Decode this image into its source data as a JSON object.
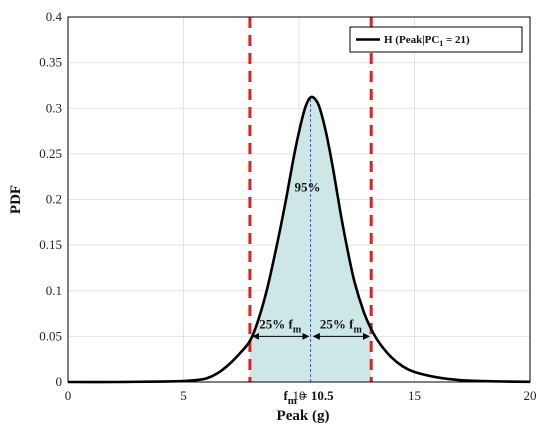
{
  "chart_data": {
    "type": "line",
    "xlabel": "Peak (g)",
    "ylabel": "PDF",
    "xlim": [
      0,
      20
    ],
    "ylim": [
      0,
      0.4
    ],
    "xticks": [
      0,
      5,
      10,
      15,
      20
    ],
    "yticks": [
      "0",
      "0.05",
      "0.1",
      "0.15",
      "0.2",
      "0.25",
      "0.3",
      "0.35",
      "0.4"
    ],
    "grid": true,
    "series": [
      {
        "name": "H (Peak|PC",
        "name_sub": "1",
        "name_tail": " = 21)",
        "color": "#000000",
        "x": [
          0,
          2,
          4,
          5,
          5.5,
          6,
          6.5,
          7,
          7.5,
          7.875,
          8.2,
          8.6,
          9.0,
          9.4,
          9.8,
          10.1,
          10.3,
          10.5,
          10.7,
          10.9,
          11.2,
          11.5,
          11.8,
          12.1,
          12.4,
          12.8,
          13.125,
          13.5,
          14,
          14.5,
          15,
          16,
          17,
          18,
          19,
          20
        ],
        "y": [
          0,
          0,
          0.0005,
          0.001,
          0.002,
          0.004,
          0.01,
          0.02,
          0.033,
          0.045,
          0.065,
          0.1,
          0.145,
          0.195,
          0.25,
          0.285,
          0.303,
          0.312,
          0.31,
          0.3,
          0.27,
          0.23,
          0.185,
          0.145,
          0.11,
          0.077,
          0.058,
          0.042,
          0.027,
          0.017,
          0.011,
          0.005,
          0.002,
          0.001,
          0.0005,
          0.0002
        ]
      }
    ],
    "legend": {
      "position": "top-right"
    },
    "shaded_region": {
      "x_from": 7.875,
      "x_to": 13.125,
      "color": "#cde7e7",
      "label": "95%"
    },
    "bounds": {
      "lower": 7.875,
      "upper": 13.125,
      "color": "#e02020"
    },
    "median": {
      "x": 10.5,
      "label_f": "f",
      "label_sub": "m",
      "label_tail": " = 10.5",
      "color": "#3355ff"
    },
    "arrows": [
      {
        "from": 7.875,
        "to": 10.5,
        "y": 0.05,
        "label_pre": "25% f",
        "label_sub": "m"
      },
      {
        "from": 10.5,
        "to": 13.125,
        "y": 0.05,
        "label_pre": "25% f",
        "label_sub": "m"
      }
    ]
  }
}
